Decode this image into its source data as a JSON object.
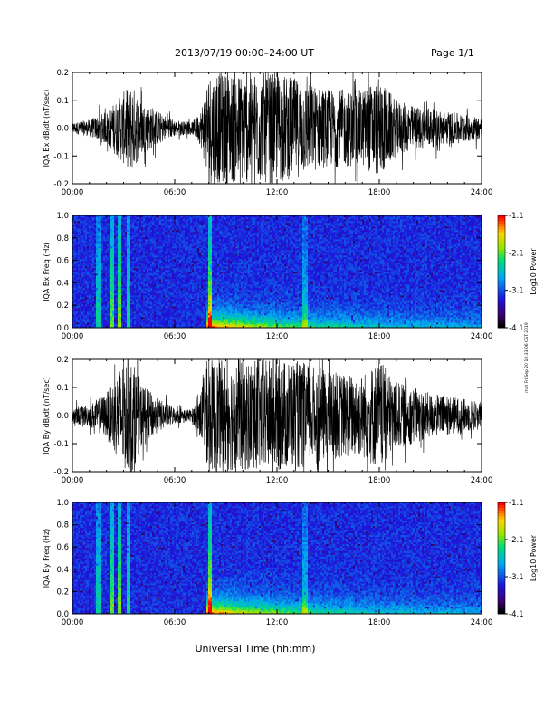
{
  "header": {
    "title": "2013/07/19  00:00–24:00 UT",
    "page": "Page 1/1"
  },
  "side_stamp": "mat Fri Sep 20 10:33:06 CST 2019",
  "xlabel": "Universal Time (hh:mm)",
  "chart_data": [
    {
      "type": "line",
      "ylabel": "IQA Bx dB/dt (nT/sec)",
      "xlim": [
        0,
        24
      ],
      "xticks": [
        "00:00",
        "06:00",
        "12:00",
        "18:00",
        "24:00"
      ],
      "ylim": [
        -0.2,
        0.2
      ],
      "yticks": [
        "-0.2",
        "-0.1",
        "0.0",
        "0.1",
        "0.2"
      ],
      "envelope": {
        "x": [
          0,
          1,
          2,
          3,
          3.5,
          4,
          5,
          6,
          7,
          7.5,
          8,
          9,
          10,
          11,
          12,
          13,
          14,
          15,
          16,
          17,
          18,
          19,
          20,
          21,
          22,
          23,
          24
        ],
        "amp": [
          0.02,
          0.03,
          0.06,
          0.13,
          0.16,
          0.1,
          0.06,
          0.03,
          0.02,
          0.06,
          0.2,
          0.2,
          0.2,
          0.2,
          0.2,
          0.18,
          0.16,
          0.14,
          0.14,
          0.14,
          0.18,
          0.1,
          0.08,
          0.07,
          0.06,
          0.05,
          0.04
        ]
      }
    },
    {
      "type": "heatmap",
      "ylabel": "IQA Bx Freq (Hz)",
      "xlim": [
        0,
        24
      ],
      "xticks": [
        "00:00",
        "06:00",
        "12:00",
        "18:00",
        "24:00"
      ],
      "ylim": [
        0,
        1
      ],
      "yticks": [
        "0.0",
        "0.2",
        "0.4",
        "0.6",
        "0.8",
        "1.0"
      ],
      "colorbar": {
        "label": "Log10 Power",
        "ticks": [
          "-1.1",
          "-2.1",
          "-3.1",
          "-4.1"
        ],
        "range": [
          -4.1,
          -1.1
        ]
      }
    },
    {
      "type": "line",
      "ylabel": "IQA By dB/dt (nT/sec)",
      "xlim": [
        0,
        24
      ],
      "xticks": [
        "00:00",
        "06:00",
        "12:00",
        "18:00",
        "24:00"
      ],
      "ylim": [
        -0.2,
        0.2
      ],
      "yticks": [
        "-0.2",
        "-0.1",
        "0.0",
        "0.1",
        "0.2"
      ],
      "envelope": {
        "x": [
          0,
          1,
          2,
          3,
          3.5,
          4,
          5,
          6,
          7,
          7.5,
          8,
          9,
          10,
          11,
          12,
          13,
          14,
          15,
          16,
          17,
          18,
          19,
          20,
          21,
          22,
          23,
          24
        ],
        "amp": [
          0.03,
          0.04,
          0.08,
          0.2,
          0.2,
          0.12,
          0.06,
          0.03,
          0.02,
          0.08,
          0.2,
          0.2,
          0.2,
          0.2,
          0.2,
          0.2,
          0.18,
          0.16,
          0.15,
          0.15,
          0.2,
          0.12,
          0.1,
          0.08,
          0.07,
          0.06,
          0.05
        ]
      }
    },
    {
      "type": "heatmap",
      "ylabel": "IQA By Freq (Hz)",
      "xlim": [
        0,
        24
      ],
      "xticks": [
        "00:00",
        "06:00",
        "12:00",
        "18:00",
        "24:00"
      ],
      "ylim": [
        0,
        1
      ],
      "yticks": [
        "0.0",
        "0.2",
        "0.4",
        "0.6",
        "0.8",
        "1.0"
      ],
      "colorbar": {
        "label": "Log10 Power",
        "ticks": [
          "-1.1",
          "-2.1",
          "-3.1",
          "-4.1"
        ],
        "range": [
          -4.1,
          -1.1
        ]
      }
    }
  ]
}
